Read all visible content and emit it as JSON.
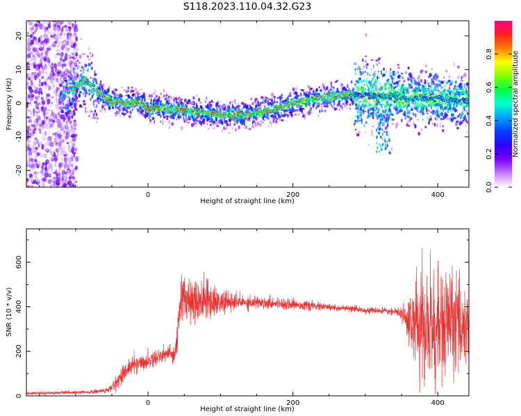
{
  "title": "S118.2023.110.04.32.G23",
  "colorbar": {
    "label": "Normalized spectral amplitude",
    "ticks": [
      "0.0",
      "0.2",
      "0.4",
      "0.6",
      "0.8"
    ],
    "tick_values": [
      0.0,
      0.2,
      0.4,
      0.6,
      0.8
    ],
    "colormap": [
      "#ffffff",
      "#c77dff",
      "#7a00ff",
      "#2f00ff",
      "#0040ff",
      "#00a0ff",
      "#00ffd0",
      "#00ff40",
      "#80ff00",
      "#ffff00",
      "#ff8000",
      "#ff2020",
      "#ff0080"
    ]
  },
  "chart_data": [
    {
      "type": "heatmap",
      "xlabel": "Height of straight line (km)",
      "ylabel": "Frequency (Hz)",
      "xlim": [
        -168,
        443
      ],
      "ylim": [
        -25,
        24.5
      ],
      "x_ticks": [
        0,
        200,
        400
      ],
      "x_tick_labels": [
        "0",
        "200",
        "400"
      ],
      "y_ticks": [
        -20,
        -10,
        0,
        10,
        20
      ],
      "y_tick_labels": [
        "-20",
        "-10",
        "0",
        "10",
        "20"
      ],
      "ridge_x": [
        -115,
        -100,
        -85,
        -70,
        -50,
        -30,
        -10,
        0,
        20,
        40,
        60,
        80,
        100,
        120,
        140,
        160,
        180,
        200,
        220,
        240,
        260,
        280,
        300,
        320,
        340,
        360,
        380,
        400,
        420,
        440
      ],
      "ridge_y": [
        2,
        5,
        7,
        3,
        0.5,
        0,
        0.2,
        -2,
        -1.5,
        -2,
        -2.5,
        -3,
        -3.5,
        -3.5,
        -3.5,
        -2.5,
        -1.5,
        0,
        0.8,
        1.5,
        2,
        2.5,
        2.5,
        2,
        2,
        1.5,
        1.5,
        1.5,
        1,
        0.5
      ]
    },
    {
      "type": "line",
      "xlabel": "Height of straight line (km)",
      "ylabel": "SNR (10 * v/v)",
      "xlim": [
        -168,
        443
      ],
      "ylim": [
        0,
        750
      ],
      "x_ticks": [
        0,
        200,
        400
      ],
      "x_tick_labels": [
        "0",
        "200",
        "400"
      ],
      "y_ticks": [
        0,
        200,
        400,
        600
      ],
      "y_tick_labels": [
        "0",
        "200",
        "400",
        "600"
      ],
      "color": "#ee3333",
      "envelope_x": [
        -168,
        -120,
        -80,
        -55,
        -45,
        -35,
        -20,
        0,
        20,
        38,
        45,
        60,
        80,
        100,
        120,
        150,
        180,
        220,
        260,
        300,
        340,
        355,
        365,
        380,
        400,
        420,
        443
      ],
      "envelope_mean": [
        12,
        14,
        16,
        25,
        55,
        100,
        140,
        155,
        185,
        195,
        430,
        440,
        430,
        420,
        420,
        420,
        415,
        405,
        395,
        385,
        378,
        360,
        330,
        310,
        300,
        330,
        330
      ],
      "envelope_amp": [
        6,
        6,
        8,
        12,
        25,
        35,
        35,
        30,
        35,
        40,
        110,
        100,
        80,
        50,
        35,
        25,
        22,
        18,
        14,
        12,
        12,
        40,
        160,
        240,
        250,
        200,
        150
      ]
    }
  ]
}
